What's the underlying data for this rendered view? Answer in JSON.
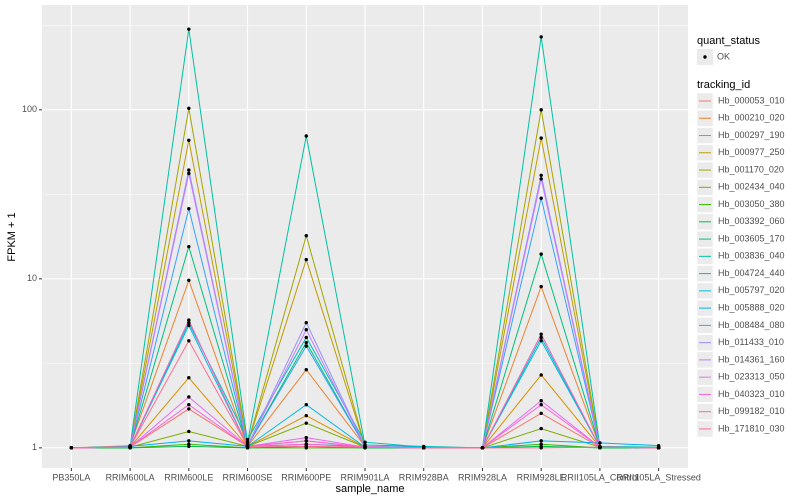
{
  "chart_data": {
    "type": "line",
    "x_label": "sample_name",
    "y_label": "FPKM + 1",
    "categories": [
      "PB350LA",
      "RRIM600LA",
      "RRIM600LE",
      "RRIM600SE",
      "RRIM600PE",
      "RRIM901LA",
      "RRIM928BA",
      "RRIM928LA",
      "RRIM928LE",
      "RRII105LA_Control",
      "RRII105LA_Stressed"
    ],
    "yscale": "log",
    "ylim": [
      0.76,
      417
    ],
    "yticks": [
      1,
      10,
      100
    ],
    "grid": true,
    "shape_legend": {
      "title": "quant_status",
      "values": [
        "OK"
      ]
    },
    "legend_title": "tracking_id",
    "legend_position": "right",
    "point_color": "#000000",
    "series": [
      {
        "name": "Hb_000053_010",
        "color": "#F8766D",
        "values": [
          1,
          1.01,
          1.7,
          1.02,
          1.1,
          1.01,
          1,
          1,
          1.6,
          1.01,
          1
        ]
      },
      {
        "name": "Hb_000210_020",
        "color": "#EA8331",
        "values": [
          1,
          1.03,
          9.8,
          1.02,
          2.9,
          1.02,
          1,
          1,
          9,
          1.01,
          1
        ]
      },
      {
        "name": "Hb_000297_190",
        "color": "#D89000",
        "values": [
          1,
          1.01,
          2.6,
          1.02,
          1.55,
          1.01,
          1,
          1,
          2.7,
          1.01,
          1
        ]
      },
      {
        "name": "Hb_000977_250",
        "color": "#C09B00",
        "values": [
          1,
          1.01,
          66,
          1.05,
          13,
          1.02,
          1,
          1,
          68,
          1.01,
          1
        ]
      },
      {
        "name": "Hb_001170_020",
        "color": "#A3A500",
        "values": [
          1,
          1.01,
          102,
          1.05,
          18,
          1.02,
          1,
          1,
          100,
          1.01,
          1
        ]
      },
      {
        "name": "Hb_002434_040",
        "color": "#7CAE00",
        "values": [
          1,
          1.01,
          1.25,
          1.02,
          1.4,
          1.01,
          1,
          1,
          1.3,
          1.01,
          1
        ]
      },
      {
        "name": "Hb_003050_380",
        "color": "#39B600",
        "values": [
          1,
          1,
          1.05,
          1,
          1,
          1,
          1,
          1,
          1.05,
          1,
          1
        ]
      },
      {
        "name": "Hb_003392_060",
        "color": "#00BB4E",
        "values": [
          1,
          1,
          1.02,
          1,
          1.02,
          1,
          1,
          1,
          1.02,
          1,
          1
        ]
      },
      {
        "name": "Hb_003605_170",
        "color": "#00BF7D",
        "values": [
          1,
          1.01,
          15.5,
          1.03,
          4.2,
          1.02,
          1,
          1,
          14,
          1.01,
          1
        ]
      },
      {
        "name": "Hb_003836_040",
        "color": "#00C1A3",
        "values": [
          1,
          1.02,
          300,
          1.08,
          70,
          1.04,
          1.02,
          1,
          270,
          1.02,
          1.01
        ]
      },
      {
        "name": "Hb_004724_440",
        "color": "#00BFC4",
        "values": [
          1,
          1.01,
          5.5,
          1.12,
          4.5,
          1.08,
          1.01,
          1,
          4.5,
          1.01,
          1
        ]
      },
      {
        "name": "Hb_005797_020",
        "color": "#00BAE0",
        "values": [
          1,
          1.01,
          5.3,
          1.02,
          1.8,
          1.01,
          1,
          1,
          4.3,
          1.01,
          1
        ]
      },
      {
        "name": "Hb_005888_020",
        "color": "#00B0F6",
        "values": [
          1,
          1.02,
          1.1,
          1.02,
          1.05,
          1.02,
          1.01,
          1,
          1.1,
          1.07,
          1.03
        ]
      },
      {
        "name": "Hb_008484_080",
        "color": "#35A2FF",
        "values": [
          1,
          1.01,
          26,
          1.03,
          4,
          1.02,
          1,
          1,
          30,
          1.01,
          1
        ]
      },
      {
        "name": "Hb_011433_010",
        "color": "#9590FF",
        "values": [
          1,
          1.01,
          44,
          1.03,
          5.5,
          1.02,
          1,
          1,
          41,
          1.01,
          1
        ]
      },
      {
        "name": "Hb_014361_160",
        "color": "#C77CFF",
        "values": [
          1,
          1.01,
          42,
          1.03,
          5,
          1.02,
          1,
          1,
          39,
          1.01,
          1
        ]
      },
      {
        "name": "Hb_023313_050",
        "color": "#E76BF3",
        "values": [
          1,
          1.01,
          2,
          1.02,
          1.15,
          1.01,
          1,
          1,
          1.9,
          1.01,
          1
        ]
      },
      {
        "name": "Hb_040323_010",
        "color": "#FA62DB",
        "values": [
          1,
          1.01,
          1.8,
          1.02,
          1.1,
          1.01,
          1,
          1,
          1.8,
          1.01,
          1
        ]
      },
      {
        "name": "Hb_099182_010",
        "color": "#FF62BC",
        "values": [
          1,
          1.01,
          5.7,
          1.02,
          1.05,
          1.01,
          1,
          1,
          4.7,
          1.01,
          1
        ]
      },
      {
        "name": "Hb_171810_030",
        "color": "#FF6C91",
        "values": [
          1,
          1.01,
          4.3,
          1.02,
          1.02,
          1.01,
          1,
          1,
          1,
          1.01,
          1
        ]
      }
    ]
  }
}
